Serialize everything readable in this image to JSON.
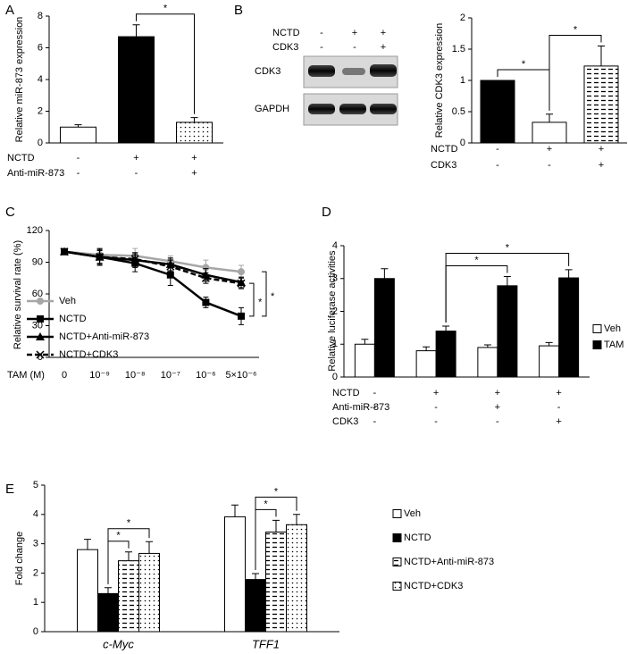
{
  "chart_data": [
    {
      "type": "bar",
      "panel": "A",
      "ylabel": "Relative miR-873 expression",
      "ylim": [
        0,
        8
      ],
      "yticks": [
        0,
        2,
        4,
        6,
        8
      ],
      "series": [
        {
          "values": [
            1.0,
            6.7,
            1.3
          ],
          "errors": [
            0.15,
            0.75,
            0.3
          ],
          "fills": [
            "white",
            "black",
            "dots"
          ]
        }
      ],
      "conditions": [
        {
          "name": "NCTD",
          "values": [
            "-",
            "+",
            "+"
          ]
        },
        {
          "name": "Anti-miR-873",
          "values": [
            "-",
            "-",
            "+"
          ]
        }
      ],
      "annotations": [
        {
          "label": "*",
          "between": [
            [
              1,
              0
            ],
            [
              2,
              0
            ]
          ]
        }
      ]
    },
    {
      "type": "bar",
      "panel": "B",
      "blot": {
        "conditions": [
          {
            "name": "NCTD",
            "values": [
              "-",
              "+",
              "+"
            ]
          },
          {
            "name": "CDK3",
            "values": [
              "-",
              "-",
              "+"
            ]
          }
        ],
        "bands": [
          "CDK3",
          "GAPDH"
        ]
      },
      "ylabel": "Relative CDK3 expression",
      "ylim": [
        0,
        2
      ],
      "yticks": [
        0,
        0.5,
        1,
        1.5,
        2
      ],
      "series": [
        {
          "values": [
            1.0,
            0.33,
            1.23
          ],
          "errors": [
            null,
            0.13,
            0.32
          ],
          "fills": [
            "black",
            "white",
            "dashes"
          ]
        }
      ],
      "conditions": [
        {
          "name": "NCTD",
          "values": [
            "-",
            "+",
            "+"
          ]
        },
        {
          "name": "CDK3",
          "values": [
            "-",
            "-",
            "+"
          ]
        }
      ],
      "annotations": [
        {
          "label": "*",
          "between": [
            [
              0,
              0
            ],
            [
              1,
              0
            ]
          ]
        },
        {
          "label": "*",
          "between": [
            [
              1,
              0
            ],
            [
              2,
              0
            ]
          ]
        }
      ]
    },
    {
      "type": "line",
      "panel": "C",
      "ylabel": "Relative survival rate (%)",
      "xlabel": "TAM (M)",
      "ylim": [
        0,
        120
      ],
      "yticks": [
        0,
        30,
        60,
        90,
        120
      ],
      "categories": [
        "0",
        "10⁻⁹",
        "10⁻⁸",
        "10⁻⁷",
        "10⁻⁶",
        "5×10⁻⁶"
      ],
      "series": [
        {
          "name": "Veh",
          "color": "#a6a6a6",
          "marker": "circle",
          "dashed": false,
          "values": [
            100,
            97,
            96,
            91,
            85,
            81
          ],
          "errors": [
            2,
            5,
            7,
            5,
            7,
            6
          ]
        },
        {
          "name": "NCTD",
          "color": "#000000",
          "marker": "square",
          "dashed": false,
          "values": [
            100,
            95,
            89,
            78,
            52,
            39
          ],
          "errors": [
            2,
            8,
            8,
            10,
            5,
            8
          ]
        },
        {
          "name": "NCTD+Anti-miR-873",
          "color": "#000000",
          "marker": "triangle",
          "dashed": false,
          "values": [
            100,
            95,
            92,
            88,
            78,
            71
          ],
          "errors": [
            2,
            7,
            7,
            6,
            6,
            5
          ]
        },
        {
          "name": "NCTD+CDK3",
          "color": "#000000",
          "marker": "x",
          "dashed": true,
          "values": [
            100,
            95,
            93,
            86,
            75,
            70
          ],
          "errors": [
            2,
            6,
            6,
            6,
            5,
            5
          ]
        }
      ],
      "annotations": [
        {
          "label": "*",
          "between": [
            [
              5,
              1
            ],
            [
              5,
              3
            ]
          ]
        },
        {
          "label": "*",
          "between": [
            [
              5,
              1
            ],
            [
              5,
              0
            ]
          ]
        }
      ]
    },
    {
      "type": "bar",
      "panel": "D",
      "ylabel": "Relative luciferase activities",
      "ylim": [
        0,
        4
      ],
      "yticks": [
        0,
        1,
        2,
        3,
        4
      ],
      "series": [
        {
          "name": "Veh",
          "fill": "white",
          "values": [
            1.0,
            0.8,
            0.9,
            0.95
          ],
          "errors": [
            0.15,
            0.12,
            0.08,
            0.1
          ]
        },
        {
          "name": "TAM",
          "fill": "black",
          "values": [
            3.0,
            1.4,
            2.78,
            3.02
          ],
          "errors": [
            0.3,
            0.15,
            0.28,
            0.25
          ]
        }
      ],
      "conditions": [
        {
          "name": "NCTD",
          "values": [
            "-",
            "+",
            "+",
            "+"
          ]
        },
        {
          "name": "Anti-miR-873",
          "values": [
            "-",
            "-",
            "+",
            "-"
          ]
        },
        {
          "name": "CDK3",
          "values": [
            "-",
            "-",
            "-",
            "+"
          ]
        }
      ],
      "annotations": [
        {
          "label": "*",
          "between": [
            [
              1,
              1
            ],
            [
              2,
              1
            ]
          ]
        },
        {
          "label": "*",
          "between": [
            [
              1,
              1
            ],
            [
              3,
              1
            ]
          ]
        }
      ]
    },
    {
      "type": "bar",
      "panel": "E",
      "ylabel": "Fold change",
      "ylim": [
        0,
        5
      ],
      "yticks": [
        0,
        1,
        2,
        3,
        4,
        5
      ],
      "categories": [
        "c-Myc",
        "TFF1"
      ],
      "series": [
        {
          "name": "Veh",
          "fill": "white",
          "values": [
            2.8,
            3.92
          ],
          "errors": [
            0.35,
            0.4
          ]
        },
        {
          "name": "NCTD",
          "fill": "black",
          "values": [
            1.3,
            1.78
          ],
          "errors": [
            0.2,
            0.2
          ]
        },
        {
          "name": "NCTD+Anti-miR-873",
          "fill": "dashes",
          "values": [
            2.42,
            3.4
          ],
          "errors": [
            0.3,
            0.4
          ]
        },
        {
          "name": "NCTD+CDK3",
          "fill": "dots",
          "values": [
            2.67,
            3.65
          ],
          "errors": [
            0.4,
            0.35
          ]
        }
      ],
      "annotations": [
        {
          "label": "*",
          "between": [
            [
              0,
              1
            ],
            [
              0,
              2
            ]
          ]
        },
        {
          "label": "*",
          "between": [
            [
              0,
              1
            ],
            [
              0,
              3
            ]
          ]
        },
        {
          "label": "*",
          "between": [
            [
              1,
              1
            ],
            [
              1,
              2
            ]
          ]
        },
        {
          "label": "*",
          "between": [
            [
              1,
              1
            ],
            [
              1,
              3
            ]
          ]
        }
      ]
    }
  ]
}
